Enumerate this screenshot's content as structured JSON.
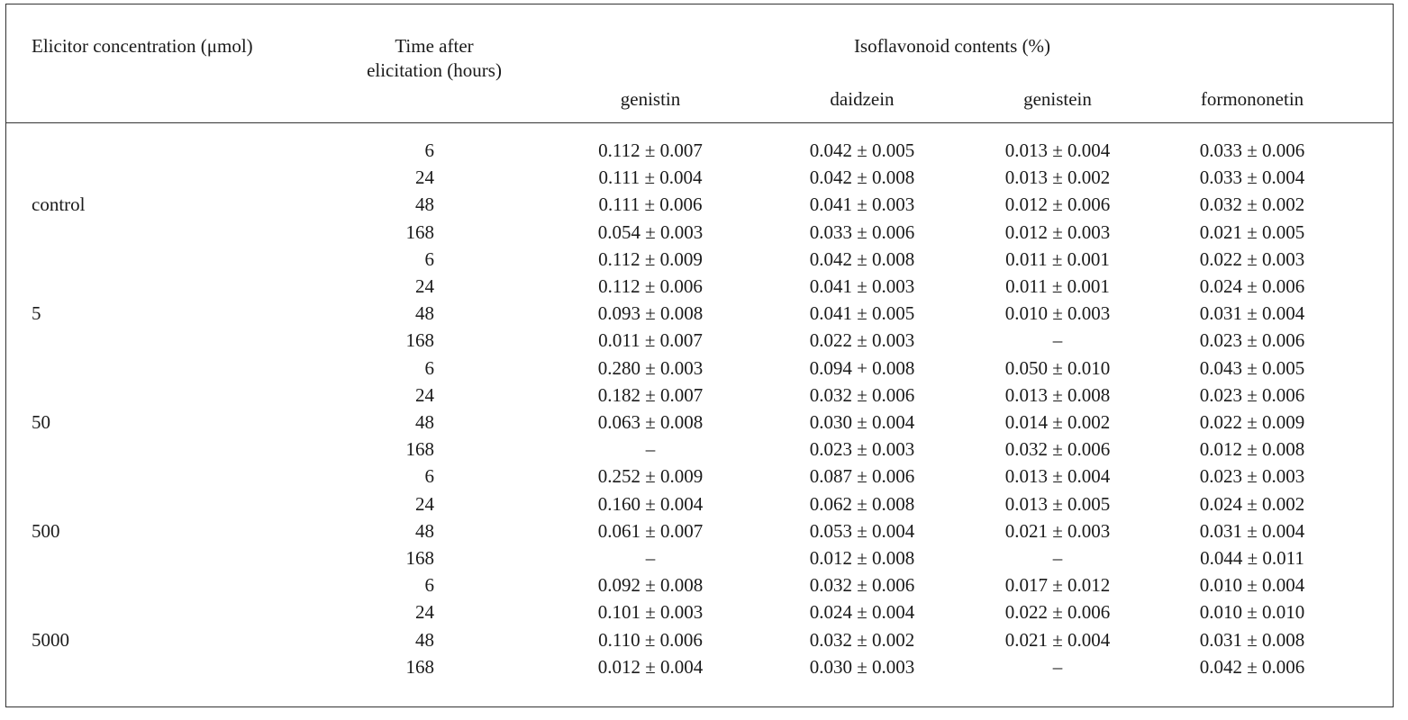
{
  "header": {
    "col_concentration": "Elicitor concentration (μmol)",
    "col_time_line1": "Time after",
    "col_time_line2": "elicitation (hours)",
    "group_title": "Isoflavonoid contents (%)",
    "compounds": [
      "genistin",
      "daidzein",
      "genistein",
      "formononetin"
    ]
  },
  "groups": [
    {
      "concentration": "control",
      "rows": [
        {
          "time": "6",
          "values": [
            "0.112 ± 0.007",
            "0.042 ± 0.005",
            "0.013 ± 0.004",
            "0.033 ± 0.006"
          ]
        },
        {
          "time": "24",
          "values": [
            "0.111 ± 0.004",
            "0.042 ± 0.008",
            "0.013 ± 0.002",
            "0.033 ± 0.004"
          ]
        },
        {
          "time": "48",
          "values": [
            "0.111 ± 0.006",
            "0.041 ± 0.003",
            "0.012 ± 0.006",
            "0.032 ± 0.002"
          ]
        },
        {
          "time": "168",
          "values": [
            "0.054 ± 0.003",
            "0.033 ± 0.006",
            "0.012 ± 0.003",
            "0.021 ± 0.005"
          ]
        }
      ]
    },
    {
      "concentration": "5",
      "rows": [
        {
          "time": "6",
          "values": [
            "0.112 ± 0.009",
            "0.042 ± 0.008",
            "0.011 ± 0.001",
            "0.022 ± 0.003"
          ]
        },
        {
          "time": "24",
          "values": [
            "0.112 ± 0.006",
            "0.041 ± 0.003",
            "0.011 ± 0.001",
            "0.024 ± 0.006"
          ]
        },
        {
          "time": "48",
          "values": [
            "0.093 ± 0.008",
            "0.041 ± 0.005",
            "0.010 ± 0.003",
            "0.031 ± 0.004"
          ]
        },
        {
          "time": "168",
          "values": [
            "0.011 ± 0.007",
            "0.022 ± 0.003",
            "–",
            "0.023 ± 0.006"
          ]
        }
      ]
    },
    {
      "concentration": "50",
      "rows": [
        {
          "time": "6",
          "values": [
            "0.280 ± 0.003",
            "0.094 + 0.008",
            "0.050 ± 0.010",
            "0.043 ± 0.005"
          ]
        },
        {
          "time": "24",
          "values": [
            "0.182 ± 0.007",
            "0.032 ± 0.006",
            "0.013 ± 0.008",
            "0.023 ± 0.006"
          ]
        },
        {
          "time": "48",
          "values": [
            "0.063 ± 0.008",
            "0.030 ± 0.004",
            "0.014 ± 0.002",
            "0.022 ± 0.009"
          ]
        },
        {
          "time": "168",
          "values": [
            "–",
            "0.023 ± 0.003",
            "0.032 ± 0.006",
            "0.012 ± 0.008"
          ]
        }
      ]
    },
    {
      "concentration": "500",
      "rows": [
        {
          "time": "6",
          "values": [
            "0.252 ± 0.009",
            "0.087 ± 0.006",
            "0.013 ± 0.004",
            "0.023 ± 0.003"
          ]
        },
        {
          "time": "24",
          "values": [
            "0.160 ± 0.004",
            "0.062 ± 0.008",
            "0.013 ± 0.005",
            "0.024 ± 0.002"
          ]
        },
        {
          "time": "48",
          "values": [
            "0.061 ± 0.007",
            "0.053 ± 0.004",
            "0.021 ± 0.003",
            "0.031 ± 0.004"
          ]
        },
        {
          "time": "168",
          "values": [
            "–",
            "0.012 ± 0.008",
            "–",
            "0.044 ± 0.011"
          ]
        }
      ]
    },
    {
      "concentration": "5000",
      "rows": [
        {
          "time": "6",
          "values": [
            "0.092 ± 0.008",
            "0.032 ± 0.006",
            "0.017 ± 0.012",
            "0.010 ± 0.004"
          ]
        },
        {
          "time": "24",
          "values": [
            "0.101 ± 0.003",
            "0.024 ± 0.004",
            "0.022 ± 0.006",
            "0.010 ± 0.010"
          ]
        },
        {
          "time": "48",
          "values": [
            "0.110 ± 0.006",
            "0.032 ± 0.002",
            "0.021 ± 0.004",
            "0.031 ± 0.008"
          ]
        },
        {
          "time": "168",
          "values": [
            "0.012 ± 0.004",
            "0.030 ± 0.003",
            "–",
            "0.042 ± 0.006"
          ]
        }
      ]
    }
  ]
}
